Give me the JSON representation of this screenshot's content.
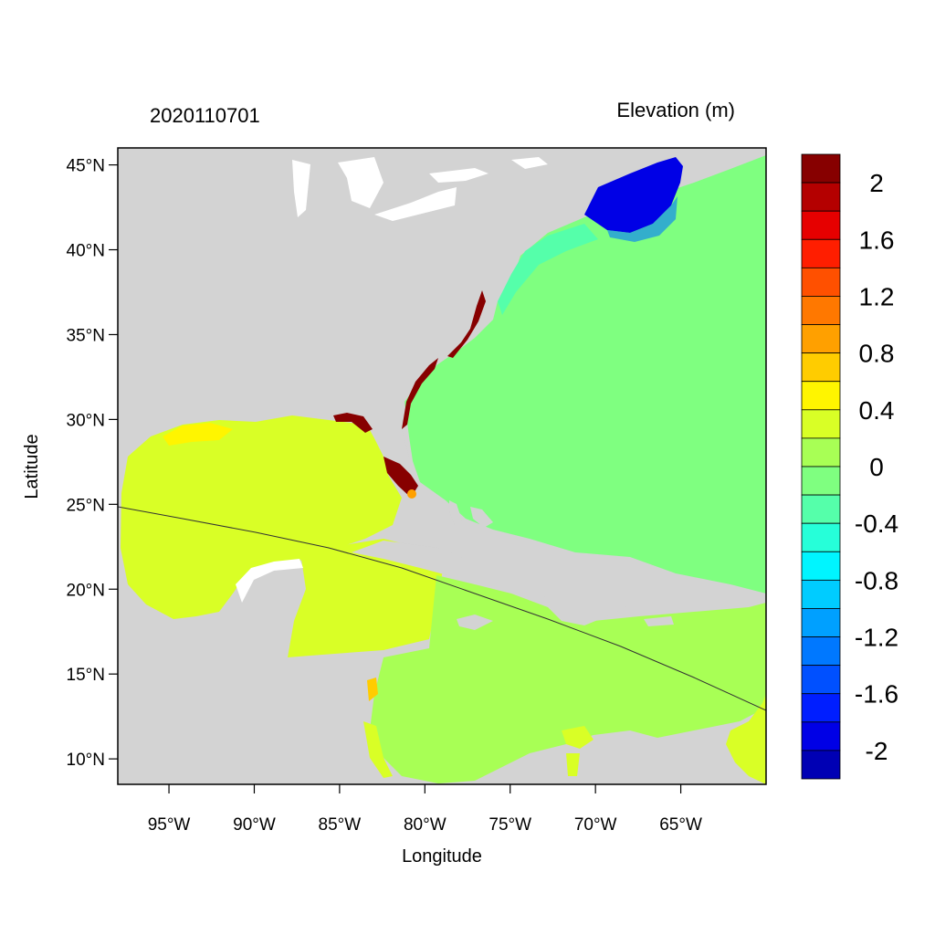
{
  "header": {
    "left_label": "2020110701",
    "right_label": "Elevation (m)"
  },
  "axes": {
    "xlabel": "Longitude",
    "ylabel": "Latitude",
    "x_ticks": [
      "95°W",
      "90°W",
      "85°W",
      "80°W",
      "75°W",
      "70°W",
      "65°W"
    ],
    "y_ticks": [
      "45°N",
      "40°N",
      "35°N",
      "30°N",
      "25°N",
      "20°N",
      "15°N",
      "10°N"
    ],
    "lon_range": [
      -98,
      -60
    ],
    "lat_range": [
      8.5,
      46
    ]
  },
  "colorbar": {
    "labels": [
      "2",
      "1.6",
      "1.2",
      "0.8",
      "0.4",
      "0",
      "-0.4",
      "-0.8",
      "-1.2",
      "-1.6",
      "-2"
    ],
    "colors": [
      "#870000",
      "#b40000",
      "#e60000",
      "#ff1e00",
      "#ff5000",
      "#ff7800",
      "#ffa000",
      "#ffcc00",
      "#fff500",
      "#d9ff26",
      "#a8ff55",
      "#7fff80",
      "#55ffaa",
      "#26ffd9",
      "#00f5ff",
      "#00ccff",
      "#00a0ff",
      "#0078ff",
      "#0050ff",
      "#001eff",
      "#0000e6",
      "#0000b4"
    ]
  },
  "colors": {
    "land": "#d3d3d3",
    "ocean_atlantic": "#7fff80",
    "gulf": "#d9ff26",
    "caribbean": "#a8ff55",
    "gulf_of_maine": "#0018e6",
    "surge": "#870000"
  }
}
